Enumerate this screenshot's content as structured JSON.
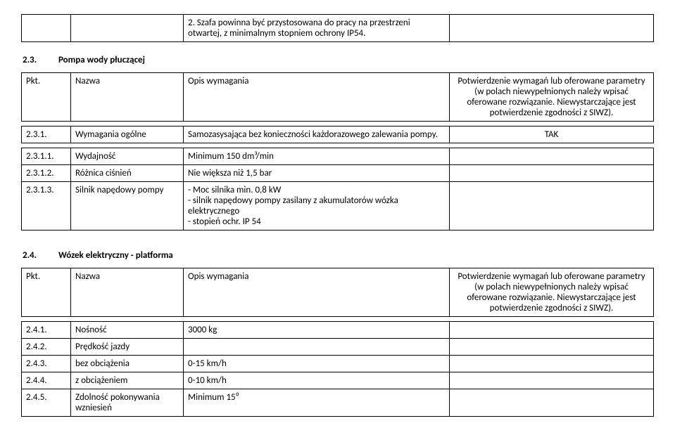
{
  "topRow": {
    "text": "2. Szafa powinna być przystosowana do pracy na przestrzeni otwartej, z minimalnym stopniem ochrony IP54."
  },
  "section23": {
    "num": "2.3.",
    "title": "Pompa wody płuczącej"
  },
  "headers": {
    "pkt": "Pkt.",
    "nazwa": "Nazwa",
    "opis": "Opis wymagania",
    "conf_line1": "Potwierdzenie wymagań lub oferowane parametry",
    "conf_line2": "(w polach niewypełnionych należy wpisać oferowane rozwiązanie. Niewystarczające jest potwierdzenie zgodności z SIWZ)."
  },
  "row231": {
    "pkt": "2.3.1.",
    "nazwa": "Wymagania ogólne",
    "opis": "Samozasysająca bez konieczności każdorazowego zalewania pompy.",
    "conf": "TAK"
  },
  "rows231x": [
    {
      "pkt": "2.3.1.1.",
      "nazwa": "Wydajność",
      "opis": "Minimum 150 dm³/min"
    },
    {
      "pkt": "2.3.1.2.",
      "nazwa": "Różnica ciśnień",
      "opis": "Nie większa niż 1,5 bar"
    },
    {
      "pkt": "2.3.1.3.",
      "nazwa": "Silnik napędowy pompy",
      "opis": "- Moc silnika min. 0,8 kW\n- silnik napędowy pompy zasilany z akumulatorów wózka elektrycznego\n- stopień ochr. IP 54"
    }
  ],
  "section24": {
    "num": "2.4.",
    "title": "Wózek elektryczny - platforma"
  },
  "rows24": [
    {
      "pkt": "2.4.1.",
      "nazwa": "Nośność",
      "opis": "3000 kg"
    },
    {
      "pkt": "2.4.2.",
      "nazwa": "Prędkość jazdy",
      "opis": ""
    },
    {
      "pkt": "2.4.3.",
      "nazwa": "bez obciążenia",
      "opis": "0-15 km/h"
    },
    {
      "pkt": "2.4.4.",
      "nazwa": "z obciążeniem",
      "opis": "0-10 km/h"
    },
    {
      "pkt": "2.4.5.",
      "nazwa": "Zdolność pokonywania wzniesień",
      "opis": "Minimum 15⁰"
    }
  ]
}
